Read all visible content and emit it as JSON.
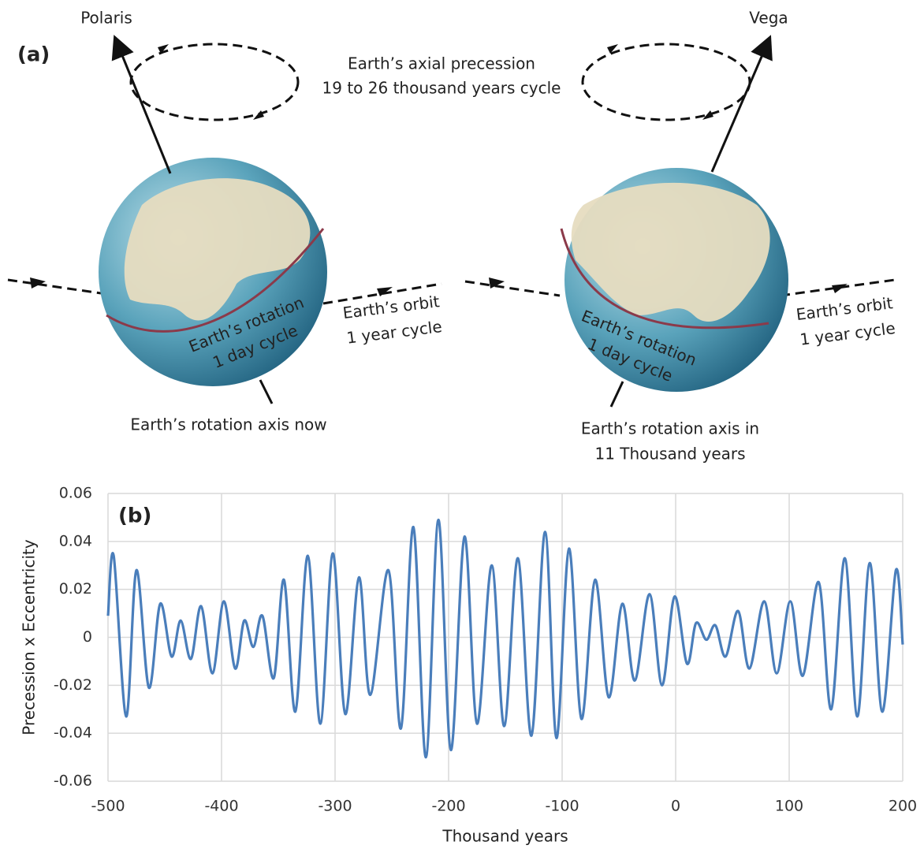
{
  "diagram": {
    "panel_label": "(a)",
    "star_left": "Polaris",
    "star_right": "Vega",
    "precession_line1": "Earth’s axial precession",
    "precession_line2": "19 to 26 thousand years cycle",
    "left": {
      "rotation_line1": "Earth’s rotation",
      "rotation_line2": "1 day cycle",
      "orbit_line1": "Earth’s orbit",
      "orbit_line2": "1 year cycle",
      "axis_line1": "Earth’s rotation axis now"
    },
    "right": {
      "rotation_line1": "Earth’s rotation",
      "rotation_line2": "1 day cycle",
      "orbit_line1": "Earth’s orbit",
      "orbit_line2": "1 year cycle",
      "axis_line1": "Earth’s rotation axis in",
      "axis_line2": "11 Thousand years"
    }
  },
  "chart_data": {
    "type": "line",
    "annotation": "(b)",
    "x_label": "Thousand years",
    "y_label": "Precession x Eccentricity",
    "xlim": [
      -500,
      200
    ],
    "ylim": [
      -0.06,
      0.06
    ],
    "xticks": [
      -500,
      -400,
      -300,
      -200,
      -100,
      0,
      100,
      200
    ],
    "yticks": [
      -0.06,
      -0.04,
      -0.02,
      0,
      0.02,
      0.04,
      0.06
    ],
    "grid": true,
    "x": [
      -500,
      -495,
      -484,
      -475,
      -464,
      -454,
      -444,
      -436,
      -427,
      -418,
      -408,
      -398,
      -388,
      -380,
      -372,
      -364,
      -354,
      -345,
      -335,
      -324,
      -313,
      -302,
      -291,
      -279,
      -269,
      -253,
      -242,
      -231,
      -220,
      -209,
      -198,
      -186,
      -175,
      -162,
      -151,
      -139,
      -127,
      -115,
      -105,
      -94,
      -83,
      -71,
      -59,
      -47,
      -36,
      -23,
      -12,
      -1,
      10,
      18,
      27,
      35,
      44,
      55,
      65,
      78,
      89,
      101,
      112,
      126,
      137,
      149,
      160,
      171,
      182,
      194,
      200
    ],
    "series": [
      {
        "color": "#4a7ebb",
        "values": [
          0.009,
          0.034,
          -0.033,
          0.028,
          -0.021,
          0.014,
          -0.008,
          0.007,
          -0.009,
          0.013,
          -0.015,
          0.015,
          -0.013,
          0.007,
          -0.004,
          0.009,
          -0.017,
          0.024,
          -0.031,
          0.034,
          -0.036,
          0.035,
          -0.032,
          0.025,
          -0.024,
          0.028,
          -0.038,
          0.046,
          -0.05,
          0.049,
          -0.047,
          0.042,
          -0.036,
          0.03,
          -0.037,
          0.033,
          -0.041,
          0.044,
          -0.042,
          0.037,
          -0.034,
          0.024,
          -0.025,
          0.014,
          -0.018,
          0.018,
          -0.02,
          0.017,
          -0.011,
          0.006,
          -0.001,
          0.005,
          -0.008,
          0.011,
          -0.013,
          0.015,
          -0.015,
          0.015,
          -0.016,
          0.023,
          -0.03,
          0.033,
          -0.033,
          0.031,
          -0.031,
          0.028,
          -0.003
        ]
      }
    ]
  }
}
